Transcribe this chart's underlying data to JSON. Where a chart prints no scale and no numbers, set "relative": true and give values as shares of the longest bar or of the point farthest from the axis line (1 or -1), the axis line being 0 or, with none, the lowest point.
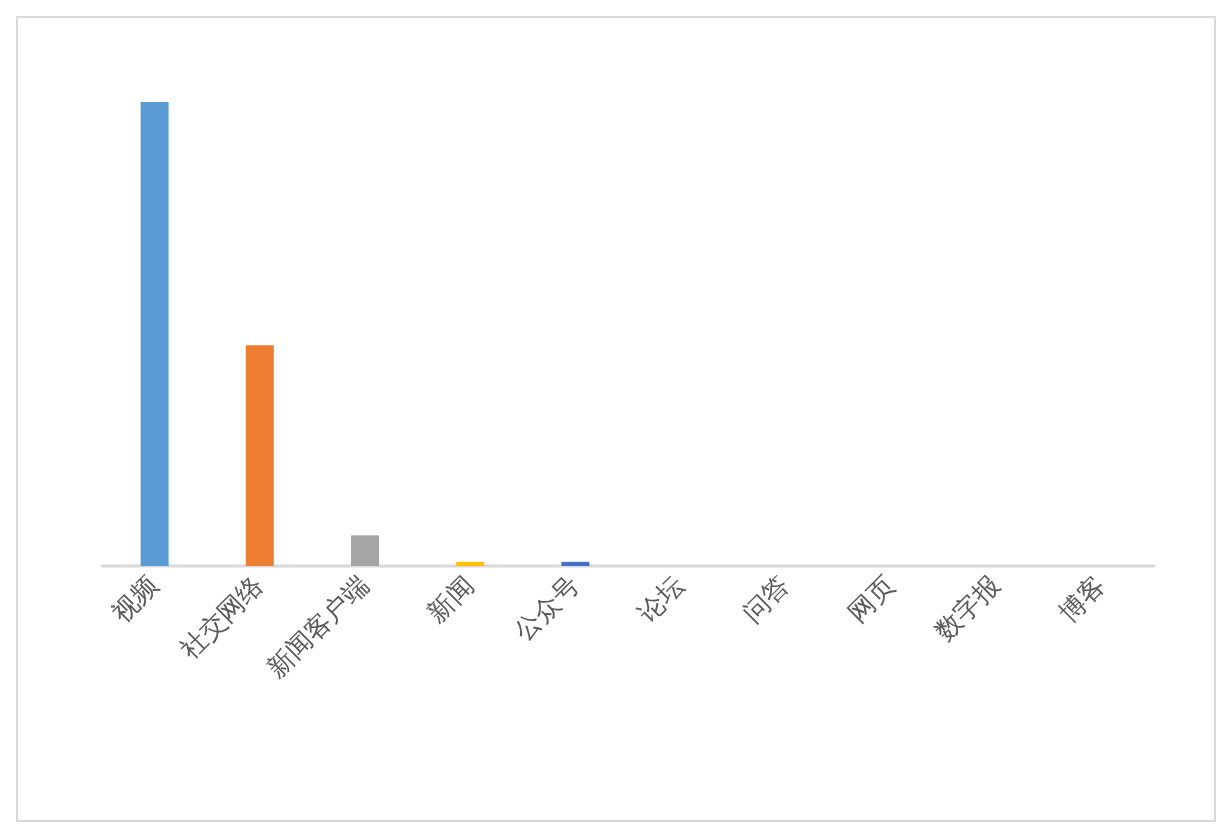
{
  "chart_data": {
    "type": "bar",
    "relative": true,
    "categories": [
      "视频",
      "社交网络",
      "新闻客户端",
      "新闻",
      "公众号",
      "论坛",
      "问答",
      "网页",
      "数字报",
      "博客"
    ],
    "values": [
      1,
      0.476,
      0.066,
      0.009,
      0.009,
      0,
      0,
      0,
      0,
      0
    ],
    "colors": [
      "#5b9bd5",
      "#ed7d31",
      "#a5a5a5",
      "#ffc000",
      "#4472c4",
      "#70ad47",
      "#264478",
      "#9e480e",
      "#636363",
      "#997300"
    ]
  }
}
